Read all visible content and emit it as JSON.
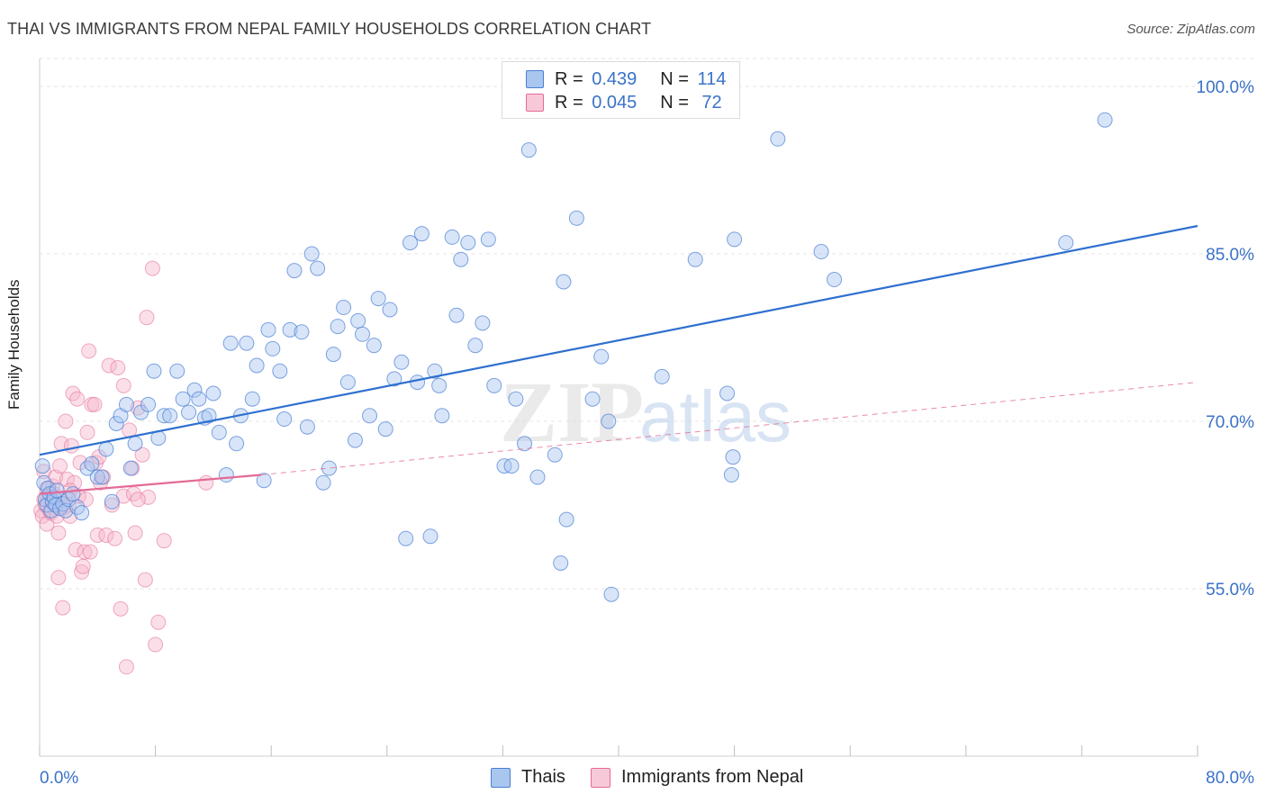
{
  "title": "THAI VS IMMIGRANTS FROM NEPAL FAMILY HOUSEHOLDS CORRELATION CHART",
  "source": "Source: ZipAtlas.com",
  "watermark": {
    "zip": "ZIP",
    "atlas": "atlas"
  },
  "legend_top": {
    "rows": [
      {
        "r_label": "R =",
        "r_value": "0.439",
        "n_label": "N =",
        "n_value": "114",
        "color": "#a9c6ef"
      },
      {
        "r_label": "R =",
        "r_value": "0.045",
        "n_label": "N =",
        "n_value": "72",
        "color": "#f7b7cb"
      }
    ]
  },
  "legend_bottom": {
    "items": [
      {
        "label": "Thais",
        "color": "#a9c6ef"
      },
      {
        "label": "Immigrants from Nepal",
        "color": "#f7b7cb"
      }
    ]
  },
  "chart_data": {
    "type": "scatter",
    "title": "THAI VS IMMIGRANTS FROM NEPAL FAMILY HOUSEHOLDS CORRELATION CHART",
    "xlabel": "",
    "ylabel": "Family Households",
    "xlim": [
      0,
      80
    ],
    "ylim": [
      40,
      102.5
    ],
    "x_tick_labels": [
      "0.0%",
      "80.0%"
    ],
    "y_ticks": [
      55,
      70,
      85,
      100
    ],
    "y_tick_labels": [
      "55.0%",
      "70.0%",
      "85.0%",
      "100.0%"
    ],
    "grid": true,
    "legend_placement": "top-center",
    "colors": {
      "thais": "#4a7fd4",
      "thais_fill": "#a9c6ef",
      "nepal": "#e46a97",
      "nepal_fill": "#f7b7cb",
      "axis_text": "#3a72c8"
    },
    "series": [
      {
        "name": "Thais",
        "R": 0.439,
        "N": 114,
        "trend": {
          "x": [
            0,
            80
          ],
          "y": [
            67.0,
            87.5
          ]
        },
        "points": [
          [
            0.2,
            66.0
          ],
          [
            0.3,
            64.5
          ],
          [
            0.4,
            63.0
          ],
          [
            0.5,
            62.5
          ],
          [
            0.6,
            64.0
          ],
          [
            0.7,
            63.5
          ],
          [
            0.8,
            62.0
          ],
          [
            0.9,
            62.8
          ],
          [
            1.0,
            63.2
          ],
          [
            1.1,
            62.5
          ],
          [
            1.2,
            63.8
          ],
          [
            1.4,
            62.2
          ],
          [
            1.6,
            62.6
          ],
          [
            1.8,
            62.0
          ],
          [
            2.0,
            63.0
          ],
          [
            2.3,
            63.5
          ],
          [
            2.6,
            62.3
          ],
          [
            2.9,
            61.8
          ],
          [
            3.3,
            65.8
          ],
          [
            3.6,
            66.2
          ],
          [
            4.0,
            65.0
          ],
          [
            4.3,
            65.0
          ],
          [
            4.6,
            67.5
          ],
          [
            5.0,
            62.8
          ],
          [
            5.3,
            69.8
          ],
          [
            5.6,
            70.5
          ],
          [
            6.0,
            71.5
          ],
          [
            6.3,
            65.8
          ],
          [
            6.6,
            68.0
          ],
          [
            7.0,
            70.8
          ],
          [
            7.5,
            71.5
          ],
          [
            7.9,
            74.5
          ],
          [
            8.2,
            68.5
          ],
          [
            8.6,
            70.5
          ],
          [
            9.0,
            70.5
          ],
          [
            9.5,
            74.5
          ],
          [
            9.9,
            72.0
          ],
          [
            10.3,
            70.8
          ],
          [
            10.7,
            72.8
          ],
          [
            11.0,
            72.0
          ],
          [
            11.4,
            70.3
          ],
          [
            11.7,
            70.5
          ],
          [
            12.0,
            72.5
          ],
          [
            12.4,
            69.0
          ],
          [
            12.9,
            65.2
          ],
          [
            13.2,
            77.0
          ],
          [
            13.6,
            68.0
          ],
          [
            13.9,
            70.5
          ],
          [
            14.3,
            77.0
          ],
          [
            14.7,
            72.0
          ],
          [
            15.0,
            75.0
          ],
          [
            15.5,
            64.7
          ],
          [
            15.8,
            78.2
          ],
          [
            16.1,
            76.5
          ],
          [
            16.6,
            74.5
          ],
          [
            16.9,
            70.2
          ],
          [
            17.3,
            78.2
          ],
          [
            17.6,
            83.5
          ],
          [
            18.1,
            78.0
          ],
          [
            18.5,
            69.5
          ],
          [
            18.8,
            85.0
          ],
          [
            19.2,
            83.7
          ],
          [
            19.6,
            64.5
          ],
          [
            20.0,
            65.8
          ],
          [
            20.3,
            76.0
          ],
          [
            20.6,
            78.5
          ],
          [
            21.0,
            80.2
          ],
          [
            21.3,
            73.5
          ],
          [
            21.8,
            68.3
          ],
          [
            22.0,
            79.0
          ],
          [
            22.3,
            77.8
          ],
          [
            22.8,
            70.5
          ],
          [
            23.1,
            76.8
          ],
          [
            23.4,
            81.0
          ],
          [
            23.9,
            69.3
          ],
          [
            24.2,
            80.0
          ],
          [
            24.5,
            73.8
          ],
          [
            25.0,
            75.3
          ],
          [
            25.3,
            59.5
          ],
          [
            25.6,
            86.0
          ],
          [
            26.1,
            73.5
          ],
          [
            26.4,
            86.8
          ],
          [
            27.3,
            74.5
          ],
          [
            27.0,
            59.7
          ],
          [
            27.6,
            73.2
          ],
          [
            27.8,
            70.5
          ],
          [
            28.5,
            86.5
          ],
          [
            28.8,
            79.5
          ],
          [
            29.1,
            84.5
          ],
          [
            29.6,
            86.0
          ],
          [
            30.1,
            76.8
          ],
          [
            30.6,
            78.8
          ],
          [
            31.0,
            86.3
          ],
          [
            31.4,
            73.2
          ],
          [
            32.1,
            66.0
          ],
          [
            32.6,
            66.0
          ],
          [
            32.9,
            72.0
          ],
          [
            33.5,
            68.0
          ],
          [
            33.8,
            94.3
          ],
          [
            34.4,
            65.0
          ],
          [
            35.6,
            67.0
          ],
          [
            36.0,
            57.3
          ],
          [
            36.2,
            82.5
          ],
          [
            36.4,
            61.2
          ],
          [
            37.1,
            88.2
          ],
          [
            38.2,
            72.0
          ],
          [
            38.8,
            75.8
          ],
          [
            39.3,
            70.0
          ],
          [
            39.5,
            54.5
          ],
          [
            43.0,
            74.0
          ],
          [
            45.3,
            84.5
          ],
          [
            47.5,
            72.5
          ],
          [
            47.9,
            66.8
          ],
          [
            47.8,
            65.2
          ],
          [
            48.0,
            86.3
          ],
          [
            51.0,
            95.3
          ],
          [
            54.0,
            85.2
          ],
          [
            54.9,
            82.7
          ],
          [
            70.9,
            86.0
          ],
          [
            73.6,
            97.0
          ]
        ]
      },
      {
        "name": "Immigrants from Nepal",
        "R": 0.045,
        "N": 72,
        "trend_solid": {
          "x": [
            0,
            15.3
          ],
          "y": [
            63.5,
            65.2
          ]
        },
        "trend_dashed": {
          "x": [
            15.3,
            80
          ],
          "y": [
            65.2,
            73.5
          ]
        },
        "points": [
          [
            0.1,
            62.0
          ],
          [
            0.2,
            61.5
          ],
          [
            0.3,
            63.0
          ],
          [
            0.3,
            65.5
          ],
          [
            0.4,
            62.5
          ],
          [
            0.5,
            64.0
          ],
          [
            0.5,
            60.8
          ],
          [
            0.6,
            63.2
          ],
          [
            0.7,
            62.0
          ],
          [
            0.8,
            61.8
          ],
          [
            0.9,
            64.2
          ],
          [
            1.0,
            63.5
          ],
          [
            1.0,
            62.8
          ],
          [
            1.1,
            65.0
          ],
          [
            1.2,
            61.5
          ],
          [
            1.3,
            60.0
          ],
          [
            1.3,
            56.0
          ],
          [
            1.4,
            63.0
          ],
          [
            1.5,
            68.0
          ],
          [
            1.6,
            53.3
          ],
          [
            1.7,
            62.3
          ],
          [
            1.8,
            70.0
          ],
          [
            1.9,
            64.8
          ],
          [
            2.0,
            62.5
          ],
          [
            2.1,
            61.5
          ],
          [
            2.2,
            67.8
          ],
          [
            2.3,
            72.5
          ],
          [
            2.4,
            64.5
          ],
          [
            2.5,
            58.5
          ],
          [
            2.6,
            72.0
          ],
          [
            2.7,
            63.3
          ],
          [
            2.8,
            66.3
          ],
          [
            2.9,
            56.5
          ],
          [
            3.0,
            57.0
          ],
          [
            3.1,
            58.3
          ],
          [
            3.2,
            63.0
          ],
          [
            3.3,
            69.0
          ],
          [
            3.4,
            76.3
          ],
          [
            3.5,
            58.3
          ],
          [
            3.6,
            71.5
          ],
          [
            3.8,
            71.5
          ],
          [
            3.9,
            66.3
          ],
          [
            4.0,
            59.8
          ],
          [
            4.2,
            64.5
          ],
          [
            4.4,
            65.0
          ],
          [
            4.6,
            59.8
          ],
          [
            4.8,
            75.0
          ],
          [
            5.0,
            62.5
          ],
          [
            5.2,
            59.5
          ],
          [
            5.4,
            74.8
          ],
          [
            5.6,
            53.2
          ],
          [
            5.8,
            63.3
          ],
          [
            5.8,
            73.2
          ],
          [
            6.0,
            48.0
          ],
          [
            6.2,
            69.2
          ],
          [
            6.4,
            65.8
          ],
          [
            6.5,
            63.5
          ],
          [
            6.6,
            60.0
          ],
          [
            6.8,
            71.2
          ],
          [
            7.1,
            67.0
          ],
          [
            7.3,
            55.8
          ],
          [
            7.4,
            79.3
          ],
          [
            7.5,
            63.2
          ],
          [
            7.8,
            83.7
          ],
          [
            8.0,
            50.0
          ],
          [
            8.2,
            52.0
          ],
          [
            8.6,
            59.3
          ],
          [
            11.5,
            64.5
          ],
          [
            1.4,
            66.0
          ],
          [
            2.1,
            63.8
          ],
          [
            4.1,
            66.8
          ],
          [
            6.8,
            63.0
          ]
        ]
      }
    ]
  }
}
